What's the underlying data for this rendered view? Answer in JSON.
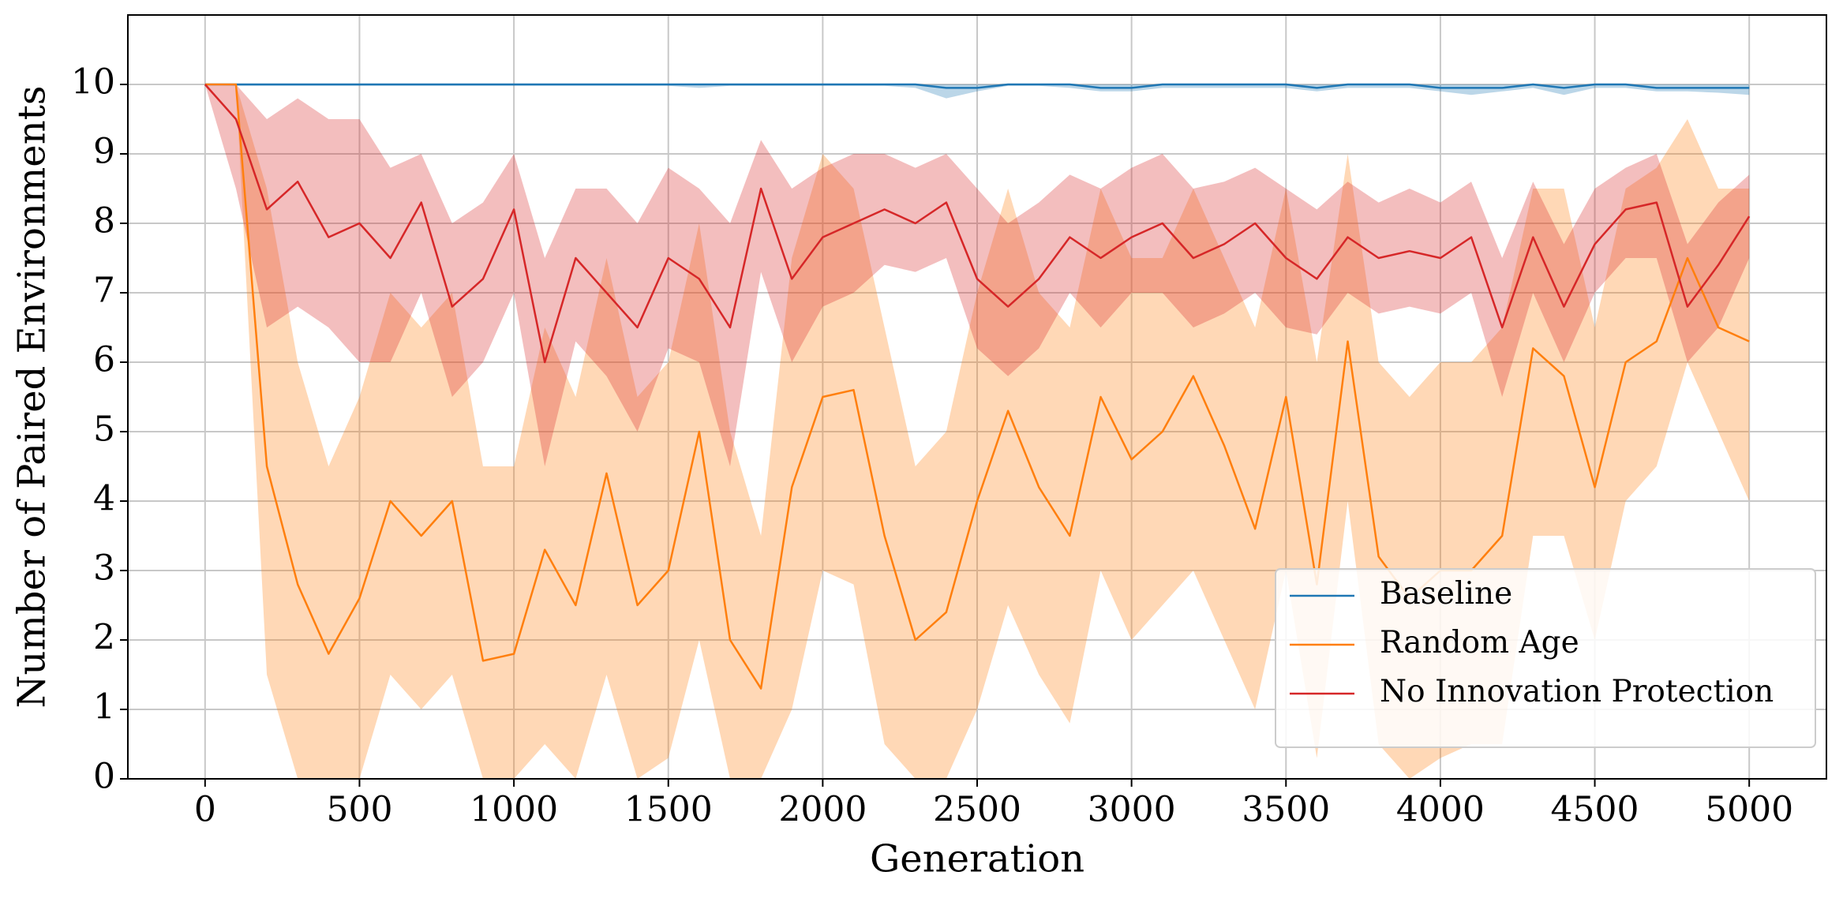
{
  "chart_data": {
    "type": "line",
    "xlabel": "Generation",
    "ylabel": "Number of Paired Environments",
    "x": [
      0,
      100,
      200,
      300,
      400,
      500,
      600,
      700,
      800,
      900,
      1000,
      1100,
      1200,
      1300,
      1400,
      1500,
      1600,
      1700,
      1800,
      1900,
      2000,
      2100,
      2200,
      2300,
      2400,
      2500,
      2600,
      2700,
      2800,
      2900,
      3000,
      3100,
      3200,
      3300,
      3400,
      3500,
      3600,
      3700,
      3800,
      3900,
      4000,
      4100,
      4200,
      4300,
      4400,
      4500,
      4600,
      4700,
      4800,
      4900,
      5000
    ],
    "series": [
      {
        "name": "Baseline",
        "color": "#1f77b4",
        "values": [
          10,
          10,
          10,
          10,
          10,
          10,
          10,
          10,
          10,
          10,
          10,
          10,
          10,
          10,
          10,
          10,
          10,
          10,
          10,
          10,
          10,
          10,
          10,
          10,
          9.95,
          9.95,
          10,
          10,
          10,
          9.95,
          9.95,
          10,
          10,
          10,
          10,
          10,
          9.95,
          10,
          10,
          10,
          9.95,
          9.95,
          9.95,
          10,
          9.95,
          10,
          10,
          9.95,
          9.95,
          9.95,
          9.95
        ],
        "lower": [
          10,
          9.98,
          9.98,
          9.98,
          9.98,
          9.98,
          9.98,
          9.98,
          9.98,
          9.98,
          9.98,
          9.98,
          9.98,
          9.98,
          9.98,
          9.98,
          9.95,
          9.98,
          9.98,
          9.98,
          9.98,
          9.98,
          9.98,
          9.95,
          9.8,
          9.9,
          9.98,
          9.98,
          9.95,
          9.9,
          9.9,
          9.95,
          9.95,
          9.95,
          9.95,
          9.95,
          9.9,
          9.95,
          9.95,
          9.95,
          9.9,
          9.85,
          9.9,
          9.95,
          9.85,
          9.95,
          9.95,
          9.9,
          9.9,
          9.88,
          9.85
        ],
        "upper": [
          10,
          10,
          10,
          10,
          10,
          10,
          10,
          10,
          10,
          10,
          10,
          10,
          10,
          10,
          10,
          10,
          10,
          10,
          10,
          10,
          10,
          10,
          10,
          10,
          10,
          10,
          10,
          10,
          10,
          10,
          10,
          10,
          10,
          10,
          10,
          10,
          10,
          10,
          10,
          10,
          10,
          10,
          10,
          10,
          10,
          10,
          10,
          10,
          10,
          10,
          10
        ]
      },
      {
        "name": "Random Age",
        "color": "#ff7f0e",
        "values": [
          10,
          10,
          4.5,
          2.8,
          1.8,
          2.6,
          4.0,
          3.5,
          4.0,
          1.7,
          1.8,
          3.3,
          2.5,
          4.4,
          2.5,
          3.0,
          5.0,
          2.0,
          1.3,
          4.2,
          5.5,
          5.6,
          3.5,
          2.0,
          2.4,
          4.0,
          5.3,
          4.2,
          3.5,
          5.5,
          4.6,
          5.0,
          5.8,
          4.8,
          3.6,
          5.5,
          2.8,
          6.3,
          3.2,
          2.6,
          3.0,
          3.0,
          3.5,
          6.2,
          5.8,
          4.2,
          6.0,
          6.3,
          7.5,
          6.5,
          6.3
        ],
        "lower": [
          10,
          10,
          1.5,
          0,
          0,
          0,
          1.5,
          1.0,
          1.5,
          0,
          0,
          0.5,
          0,
          1.5,
          0,
          0.3,
          2.0,
          0,
          0,
          1.0,
          3.0,
          2.8,
          0.5,
          0,
          0,
          1.0,
          2.5,
          1.5,
          0.8,
          3.0,
          2.0,
          2.5,
          3.0,
          2.0,
          1.0,
          3.0,
          0.3,
          4.0,
          0.5,
          0,
          0.3,
          0.5,
          0.5,
          3.5,
          3.5,
          2.0,
          4.0,
          4.5,
          6.0,
          5.0,
          4.0
        ],
        "upper": [
          10,
          10,
          8.5,
          6.0,
          4.5,
          5.5,
          7.0,
          6.5,
          7.0,
          4.5,
          4.5,
          6.5,
          5.5,
          7.5,
          5.5,
          6.0,
          8.0,
          5.0,
          3.5,
          7.5,
          9.0,
          8.5,
          6.5,
          4.5,
          5.0,
          7.0,
          8.5,
          7.0,
          6.5,
          8.5,
          7.5,
          7.5,
          8.5,
          7.5,
          6.5,
          8.5,
          6.0,
          9.0,
          6.0,
          5.5,
          6.0,
          6.0,
          6.5,
          8.5,
          8.5,
          6.5,
          8.5,
          8.8,
          9.5,
          8.5,
          8.5
        ]
      },
      {
        "name": "No Innovation Protection",
        "color": "#d62728",
        "values": [
          10,
          9.5,
          8.2,
          8.6,
          7.8,
          8.0,
          7.5,
          8.3,
          6.8,
          7.2,
          8.2,
          6.0,
          7.5,
          7.0,
          6.5,
          7.5,
          7.2,
          6.5,
          8.5,
          7.2,
          7.8,
          8.0,
          8.2,
          8.0,
          8.3,
          7.2,
          6.8,
          7.2,
          7.8,
          7.5,
          7.8,
          8.0,
          7.5,
          7.7,
          8.0,
          7.5,
          7.2,
          7.8,
          7.5,
          7.6,
          7.5,
          7.8,
          6.5,
          7.8,
          6.8,
          7.7,
          8.2,
          8.3,
          6.8,
          7.4,
          8.1
        ],
        "lower": [
          10,
          8.5,
          6.5,
          6.8,
          6.5,
          6.0,
          6.0,
          7.0,
          5.5,
          6.0,
          7.0,
          4.5,
          6.3,
          5.8,
          5.0,
          6.2,
          6.0,
          4.5,
          7.3,
          6.0,
          6.8,
          7.0,
          7.4,
          7.3,
          7.5,
          6.2,
          5.8,
          6.2,
          7.0,
          6.5,
          7.0,
          7.0,
          6.5,
          6.7,
          7.0,
          6.5,
          6.4,
          7.0,
          6.7,
          6.8,
          6.7,
          7.0,
          5.5,
          7.0,
          6.0,
          7.0,
          7.5,
          7.5,
          6.0,
          6.5,
          7.5
        ],
        "upper": [
          10,
          10,
          9.5,
          9.8,
          9.5,
          9.5,
          8.8,
          9.0,
          8.0,
          8.3,
          9.0,
          7.5,
          8.5,
          8.5,
          8.0,
          8.8,
          8.5,
          8.0,
          9.2,
          8.5,
          8.8,
          9.0,
          9.0,
          8.8,
          9.0,
          8.5,
          8.0,
          8.3,
          8.7,
          8.5,
          8.8,
          9.0,
          8.5,
          8.6,
          8.8,
          8.5,
          8.2,
          8.6,
          8.3,
          8.5,
          8.3,
          8.6,
          7.5,
          8.6,
          7.7,
          8.5,
          8.8,
          9.0,
          7.7,
          8.3,
          8.7
        ]
      }
    ],
    "xlim": [
      -250,
      5250
    ],
    "xticks": [
      0,
      500,
      1000,
      1500,
      2000,
      2500,
      3000,
      3500,
      4000,
      4500,
      5000
    ],
    "ylim": [
      0,
      11
    ],
    "yticks": [
      0,
      1,
      2,
      3,
      4,
      5,
      6,
      7,
      8,
      9,
      10
    ],
    "grid": true,
    "legend": "lower right"
  }
}
